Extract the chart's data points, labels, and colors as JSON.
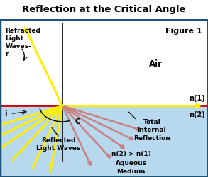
{
  "title": "Reflection at the Critical Angle",
  "figure_label": "Figure 1",
  "air_label": "Air",
  "n1_label": "n(1)",
  "n2_label": "n(2)",
  "n_relation_label": "n(2) > n(1)",
  "medium_label": "Aqueous\nMedium",
  "refracted_label": "Refracted\nLight\nWaves–\nr",
  "reflected_label": "Reflected\nLight Waves",
  "total_internal_label": "Total\nInternal\nReflection",
  "i_label": "i",
  "c_label": "C",
  "bg_top": "#ffffff",
  "bg_bottom": "#b8d8ee",
  "border_color": "#1a5276",
  "interface_color": "#cc0000",
  "normal_color": "#000000",
  "yellow_color": "#ffee00",
  "pink_color": "#c88080",
  "title_fontsize": 9.5,
  "label_fontsize": 6.5,
  "fig_width": 2.93,
  "fig_height": 2.51
}
